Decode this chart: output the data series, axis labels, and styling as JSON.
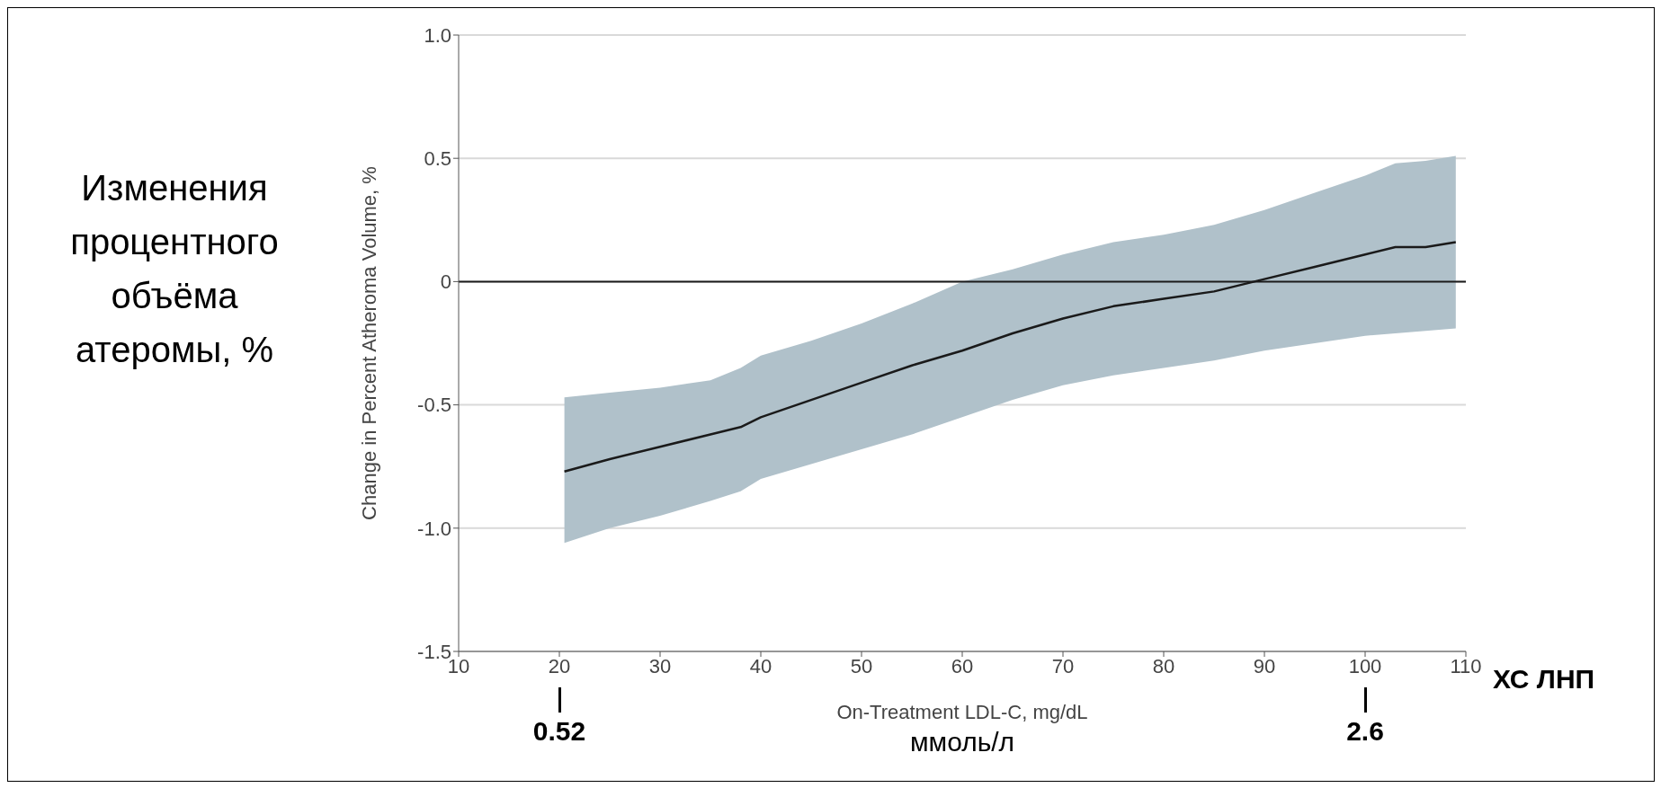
{
  "chart_data": {
    "type": "line",
    "xlabel": "On-Treatment LDL-C, mg/dL",
    "ylabel": "Change in Percent Atheroma Volume, %",
    "x": [
      20.5,
      25,
      30,
      35,
      38,
      40,
      45,
      50,
      55,
      60,
      65,
      70,
      75,
      80,
      85,
      90,
      95,
      100,
      103,
      106,
      109
    ],
    "series": [
      {
        "color": "#1a1a1a",
        "values": [
          -0.77,
          -0.72,
          -0.67,
          -0.62,
          -0.59,
          -0.55,
          -0.48,
          -0.41,
          -0.34,
          -0.28,
          -0.21,
          -0.15,
          -0.1,
          -0.07,
          -0.04,
          0.01,
          0.06,
          0.11,
          0.14,
          0.14,
          0.16
        ],
        "lower": [
          -1.06,
          -1.0,
          -0.95,
          -0.89,
          -0.85,
          -0.8,
          -0.74,
          -0.68,
          -0.62,
          -0.55,
          -0.48,
          -0.42,
          -0.38,
          -0.35,
          -0.32,
          -0.28,
          -0.25,
          -0.22,
          -0.21,
          -0.2,
          -0.19
        ],
        "upper": [
          -0.47,
          -0.45,
          -0.43,
          -0.4,
          -0.35,
          -0.3,
          -0.24,
          -0.17,
          -0.09,
          0.0,
          0.05,
          0.11,
          0.16,
          0.19,
          0.23,
          0.29,
          0.36,
          0.43,
          0.48,
          0.49,
          0.51
        ]
      }
    ],
    "xlim": [
      10,
      110
    ],
    "xticks": [
      10,
      20,
      30,
      40,
      50,
      60,
      70,
      80,
      90,
      100,
      110
    ],
    "ylim": [
      -1.5,
      1.0
    ],
    "yticks": [
      {
        "value": -1.5,
        "label": "-1.5"
      },
      {
        "value": -1.0,
        "label": "-1.0"
      },
      {
        "value": -0.5,
        "label": "-0.5"
      },
      {
        "value": 0,
        "label": "0"
      },
      {
        "value": 0.5,
        "label": "0.5"
      },
      {
        "value": 1.0,
        "label": "1.0"
      }
    ],
    "grid": "y",
    "marker": "none",
    "line_style": "solid",
    "ref_lines": [
      {
        "axis": "y",
        "value": 0,
        "color": "#1a1a1a"
      }
    ],
    "annotations": [
      "Изменения процентного объёма атеромы, %",
      "ХС ЛНП",
      "ммоль/л",
      "0.52",
      "2.6"
    ]
  }
}
